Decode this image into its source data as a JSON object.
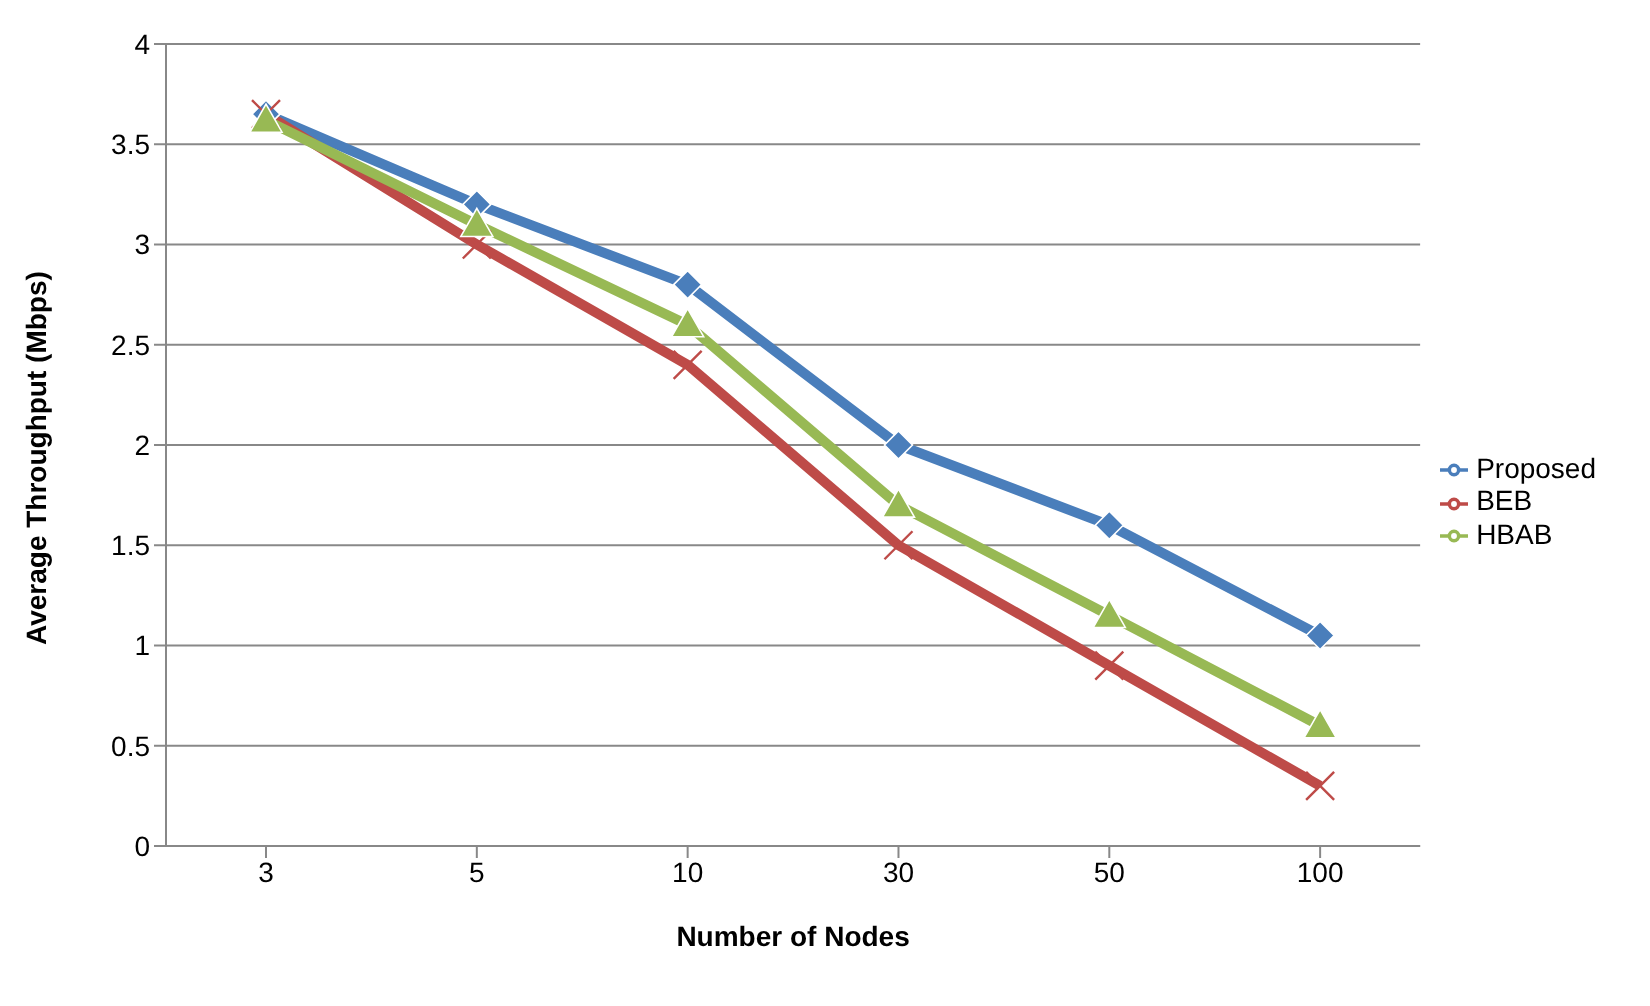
{
  "chart_data": {
    "type": "line",
    "xlabel": "Number of Nodes",
    "ylabel": "Average Throughput (Mbps)",
    "categories": [
      "3",
      "5",
      "10",
      "30",
      "50",
      "100"
    ],
    "series": [
      {
        "name": "Proposed",
        "color": "#4a7ebb",
        "marker": "diamond",
        "values": [
          3.65,
          3.2,
          2.8,
          2.0,
          1.6,
          1.05
        ]
      },
      {
        "name": "BEB",
        "color": "#be4b48",
        "marker": "cross",
        "values": [
          3.65,
          3.0,
          2.4,
          1.5,
          0.9,
          0.3
        ]
      },
      {
        "name": "HBAB",
        "color": "#98b954",
        "marker": "triangle",
        "values": [
          3.62,
          3.1,
          2.6,
          1.7,
          1.15,
          0.6
        ]
      }
    ],
    "ylim": [
      0,
      4
    ],
    "yticks": [
      0,
      0.5,
      1,
      1.5,
      2,
      2.5,
      3,
      3.5,
      4
    ],
    "grid": "y",
    "legend": "right",
    "line_style": "solid"
  }
}
